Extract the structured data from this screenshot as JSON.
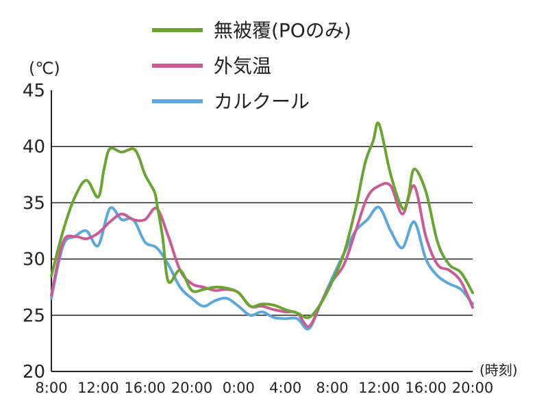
{
  "chart_data": {
    "type": "line",
    "ylabel": "(℃)",
    "xlabel": "(時刻)",
    "ylim": [
      20,
      45
    ],
    "yticks": [
      20,
      25,
      30,
      35,
      40,
      45
    ],
    "xlim": [
      8,
      44
    ],
    "xticks": [
      8,
      12,
      16,
      20,
      24,
      28,
      32,
      36,
      40,
      44
    ],
    "xtick_labels": [
      "8:00",
      "12:00",
      "16:00",
      "20:00",
      "0:00",
      "4:00",
      "8:00",
      "12:00",
      "16:00",
      "20:00"
    ],
    "grid": "horizontal",
    "legend_position": "top-right",
    "series": [
      {
        "name": "無被覆(POのみ)",
        "color": "#6aa532",
        "x": [
          8,
          9,
          10,
          11,
          12,
          12.5,
          13,
          14,
          15,
          15.5,
          16,
          16.8,
          17,
          17.5,
          18,
          19,
          20,
          21,
          22,
          23,
          24,
          25,
          26,
          27,
          28,
          29,
          30,
          31,
          32,
          33,
          34,
          34.8,
          35.5,
          36,
          37,
          38,
          38.5,
          39,
          40,
          41,
          42,
          43,
          44
        ],
        "y": [
          28.5,
          32.5,
          35.5,
          37,
          35.5,
          38,
          39.8,
          39.5,
          39.8,
          39,
          37.5,
          36,
          35,
          32,
          28,
          29,
          27.2,
          27.3,
          27.5,
          27.4,
          27,
          25.8,
          26,
          25.9,
          25.5,
          25.2,
          24.8,
          26,
          28,
          30.5,
          34.5,
          38.5,
          40.5,
          42,
          37.5,
          34.5,
          35.5,
          38,
          36,
          31.5,
          29.5,
          28.8,
          27
        ]
      },
      {
        "name": "外気温",
        "color": "#cc5a96",
        "x": [
          8,
          9,
          10,
          11,
          12,
          13,
          14,
          15,
          16,
          17,
          18,
          19,
          20,
          21,
          22,
          23,
          24,
          25,
          26,
          27,
          28,
          29,
          30,
          31,
          32,
          33,
          34,
          35,
          36,
          37,
          38,
          39,
          40,
          41,
          42,
          43,
          44
        ],
        "y": [
          26.8,
          31.5,
          32,
          31.8,
          32.3,
          33.3,
          34,
          33.5,
          33.5,
          34.5,
          32,
          29,
          27.8,
          27.5,
          27.2,
          27.3,
          27,
          25.8,
          25.8,
          25.5,
          25.3,
          25.2,
          24,
          26,
          28,
          29.5,
          32.5,
          35.5,
          36.5,
          36.5,
          34,
          36.5,
          32,
          29.5,
          29,
          28,
          25.7
        ]
      },
      {
        "name": "カルクール",
        "color": "#5aa8dd",
        "x": [
          8,
          9,
          10,
          11,
          12,
          13,
          14,
          15,
          16,
          17,
          18,
          19,
          20,
          21,
          22,
          23,
          24,
          25,
          26,
          27,
          28,
          29,
          30,
          31,
          32,
          33,
          34,
          35,
          36,
          37,
          38,
          39,
          40,
          41,
          42,
          43,
          44
        ],
        "y": [
          26.5,
          31.2,
          32,
          32.5,
          31.2,
          34.5,
          33.5,
          33.5,
          31.5,
          31,
          29.5,
          27.5,
          26.5,
          25.8,
          26.3,
          26.5,
          25.8,
          25,
          25.3,
          24.8,
          24.7,
          24.7,
          23.8,
          26,
          28.3,
          30.5,
          32.5,
          33.5,
          34.6,
          32.5,
          31,
          33.3,
          30,
          28.5,
          27.8,
          27.3,
          26
        ]
      }
    ]
  }
}
